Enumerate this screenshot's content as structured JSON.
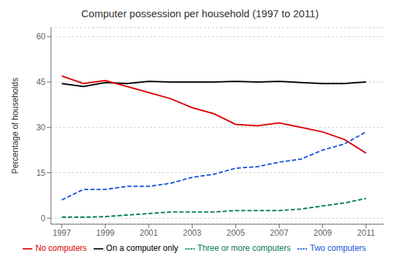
{
  "chart_data": {
    "type": "line",
    "title": "Computer possession per household (1997 to 2011)",
    "ylabel": "Percentage of households",
    "x": [
      1997,
      1998,
      1999,
      2000,
      2001,
      2002,
      2003,
      2004,
      2005,
      2006,
      2007,
      2008,
      2009,
      2010,
      2011
    ],
    "xlim": [
      1996.5,
      2011.8
    ],
    "xticks": [
      1997,
      1999,
      2001,
      2003,
      2005,
      2007,
      2009,
      2011
    ],
    "ylim": [
      -2,
      63
    ],
    "yticks": [
      0,
      15,
      30,
      45,
      60
    ],
    "grid": "y",
    "legend": "bottom",
    "series": [
      {
        "name": "On a computer only",
        "color": "#000000",
        "line_style": "solid",
        "values": [
          44.5,
          43.5,
          44.8,
          44.5,
          45.2,
          45.0,
          45.0,
          45.0,
          45.2,
          45.0,
          45.2,
          44.8,
          44.5,
          44.5,
          45.0
        ]
      },
      {
        "name": "No computers",
        "color": "#dd0000",
        "line_style": "solid",
        "values": [
          47.0,
          44.5,
          45.5,
          43.5,
          41.5,
          39.5,
          36.5,
          34.5,
          31.0,
          30.5,
          31.5,
          30.0,
          28.5,
          26.0,
          21.5
        ]
      },
      {
        "name": "Two computers",
        "color": "#1a56db",
        "line_style": "dashed",
        "values": [
          6.0,
          9.5,
          9.5,
          10.5,
          10.5,
          11.5,
          13.5,
          14.5,
          16.5,
          17.0,
          18.5,
          19.5,
          22.5,
          24.5,
          28.5
        ]
      },
      {
        "name": "Three or more computers",
        "color": "#057a55",
        "line_style": "dashed",
        "values": [
          0.3,
          0.3,
          0.5,
          1.0,
          1.5,
          2.0,
          2.0,
          2.0,
          2.5,
          2.5,
          2.5,
          3.0,
          4.0,
          5.0,
          6.5
        ]
      }
    ]
  }
}
